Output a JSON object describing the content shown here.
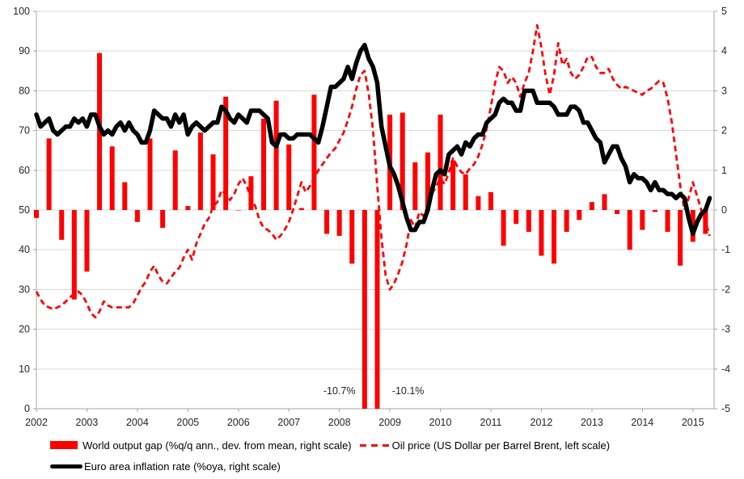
{
  "chart_data": {
    "type": "combo",
    "title": "",
    "grid": true,
    "legend_position": "bottom-left",
    "x_axis": {
      "tick_labels": [
        "2002",
        "2003",
        "2004",
        "2005",
        "2006",
        "2007",
        "2008",
        "2009",
        "2010",
        "2011",
        "2012",
        "2013",
        "2014",
        "2015"
      ],
      "domain": [
        2002,
        2015.42
      ]
    },
    "left_axis": {
      "ticks": [
        0,
        10,
        20,
        30,
        40,
        50,
        60,
        70,
        80,
        90,
        100
      ],
      "range": [
        0,
        100
      ]
    },
    "right_axis": {
      "ticks": [
        -5,
        -4,
        -3,
        -2,
        -1,
        0,
        1,
        2,
        3,
        4,
        5
      ],
      "range": [
        -5,
        5
      ]
    },
    "colors": {
      "bars": "#ff0000",
      "oil": "#ff0000",
      "inflation": "#000000",
      "grid": "#d9d9d9",
      "axis": "#a6a6a6"
    },
    "series": [
      {
        "name": "World output gap (%q/q ann., dev. from mean, right scale)",
        "type": "bar",
        "axis": "right",
        "color": "#ff0000",
        "x_start": 2002.0,
        "x_step": 0.25,
        "values": [
          -0.2,
          1.8,
          -0.75,
          -2.25,
          -1.55,
          3.95,
          1.6,
          0.7,
          -0.3,
          1.8,
          -0.45,
          1.5,
          0.1,
          1.95,
          1.4,
          2.85,
          0,
          0.85,
          2.3,
          2.75,
          1.65,
          0.05,
          2.9,
          -0.6,
          -0.65,
          -1.35,
          -10.7,
          -10.1,
          2.4,
          2.45,
          1.2,
          1.45,
          2.4,
          1.25,
          0.9,
          0.35,
          0.45,
          -0.9,
          -0.35,
          -0.55,
          -1.15,
          -1.35,
          -0.55,
          -0.25,
          0.2,
          0.4,
          -0.1,
          -1.0,
          -0.5,
          -0.05,
          -0.55,
          -1.4,
          -0.8,
          -0.6
        ]
      },
      {
        "name": "Oil price (US Dollar per Barrel Brent, left scale)",
        "type": "line",
        "style": "dashed",
        "axis": "left",
        "color": "#ff0000",
        "x_start": 2002.0,
        "x_step": 0.0833333,
        "values": [
          29.5,
          27.5,
          26,
          25.5,
          25,
          25.5,
          26,
          27,
          28,
          29,
          29.5,
          28.5,
          26.5,
          24,
          23,
          24.5,
          27,
          26,
          25.5,
          25.5,
          25.5,
          25.5,
          25.5,
          26.5,
          28.5,
          30.5,
          32,
          34.5,
          36,
          33.5,
          32,
          31.5,
          33,
          34.5,
          35.5,
          38,
          40,
          37.5,
          41.5,
          44,
          46.5,
          48,
          51,
          52,
          55,
          54,
          52.5,
          54,
          56.5,
          58,
          56,
          53,
          51,
          47.5,
          45.5,
          45,
          44,
          42.5,
          43.5,
          45,
          47,
          50,
          53.5,
          57,
          54.5,
          56,
          58,
          60,
          61.5,
          63,
          64.5,
          65.5,
          67.5,
          69.5,
          72.5,
          76,
          80.5,
          84,
          85,
          79,
          70,
          56,
          43,
          33.5,
          30,
          31.5,
          34,
          37,
          41.5,
          47.5,
          45.5,
          49.5,
          48.5,
          51,
          54,
          56,
          58,
          56.5,
          59.5,
          63,
          61,
          59.5,
          59,
          60.5,
          61.5,
          63.5,
          66.5,
          70.5,
          76,
          82,
          86,
          85,
          82,
          83.5,
          82,
          78.5,
          82,
          84.5,
          90,
          96.5,
          91,
          84,
          79,
          84,
          92,
          86.5,
          88,
          84.5,
          83,
          84,
          86,
          88.5,
          88.5,
          86,
          84.5,
          84.5,
          85.5,
          83,
          81.5,
          80.5,
          81,
          80.5,
          80,
          79.5,
          79,
          80,
          80.5,
          81.5,
          82.5,
          82,
          78,
          72,
          64,
          56,
          50,
          53,
          57,
          53.5,
          50,
          47,
          43.5
        ]
      },
      {
        "name": "Euro area inflation rate (%oya, right scale)",
        "type": "line",
        "style": "solid",
        "axis": "right",
        "color": "#000000",
        "x_start": 2002.0,
        "x_step": 0.0833333,
        "values": [
          2.4,
          2.1,
          2.2,
          2.3,
          2.0,
          1.9,
          2.0,
          2.1,
          2.1,
          2.3,
          2.2,
          2.3,
          2.1,
          2.4,
          2.4,
          2.1,
          1.9,
          2.0,
          1.9,
          2.1,
          2.2,
          2.0,
          2.2,
          2.0,
          1.9,
          1.7,
          1.7,
          2.0,
          2.5,
          2.4,
          2.3,
          2.3,
          2.1,
          2.4,
          2.2,
          2.4,
          1.9,
          2.1,
          2.2,
          2.1,
          2.0,
          2.1,
          2.2,
          2.2,
          2.6,
          2.5,
          2.3,
          2.2,
          2.4,
          2.3,
          2.2,
          2.5,
          2.5,
          2.5,
          2.4,
          2.3,
          1.7,
          1.6,
          1.9,
          1.9,
          1.8,
          1.8,
          1.9,
          1.9,
          1.9,
          1.9,
          1.8,
          1.7,
          2.1,
          2.6,
          3.1,
          3.1,
          3.2,
          3.3,
          3.6,
          3.3,
          3.7,
          4.0,
          4.15,
          3.8,
          3.6,
          3.2,
          2.1,
          1.6,
          1.1,
          0.9,
          0.6,
          0.2,
          -0.2,
          -0.5,
          -0.5,
          -0.3,
          -0.3,
          0,
          0.5,
          0.9,
          1.0,
          0.9,
          1.4,
          1.5,
          1.6,
          1.4,
          1.7,
          1.6,
          1.8,
          1.9,
          1.9,
          2.2,
          2.3,
          2.4,
          2.7,
          2.8,
          2.7,
          2.7,
          2.5,
          2.5,
          3.0,
          3.0,
          3.0,
          2.7,
          2.7,
          2.7,
          2.7,
          2.6,
          2.4,
          2.4,
          2.4,
          2.6,
          2.6,
          2.5,
          2.2,
          2.2,
          2.0,
          1.8,
          1.7,
          1.2,
          1.4,
          1.6,
          1.6,
          1.3,
          1.1,
          0.7,
          0.9,
          0.8,
          0.8,
          0.7,
          0.5,
          0.7,
          0.5,
          0.5,
          0.4,
          0.4,
          0.3,
          0.4,
          0.3,
          -0.2,
          -0.6,
          -0.3,
          -0.1,
          0.0,
          0.3
        ]
      }
    ],
    "annotations": [
      {
        "text": "-10.7%",
        "x": 2008.0,
        "y_left": 4.5
      },
      {
        "text": "-10.1%",
        "x": 2009.36,
        "y_left": 4.5
      }
    ]
  },
  "legend": {
    "items": [
      {
        "label": "World output gap (%q/q ann., dev. from mean, right scale)",
        "swatch": "bar-red"
      },
      {
        "label": "Oil price (US Dollar per Barrel Brent, left scale)",
        "swatch": "dashed-red-line"
      },
      {
        "label": "Euro area inflation rate (%oya, right scale)",
        "swatch": "thick-black-line"
      }
    ]
  }
}
